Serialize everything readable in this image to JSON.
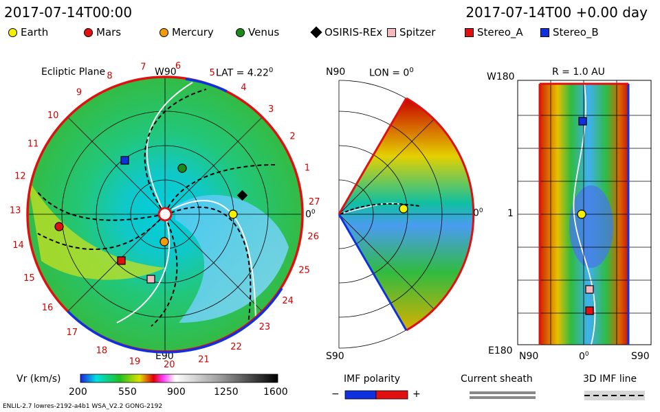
{
  "header": {
    "left_time": "2017-07-14T00:00",
    "right_time": "2017-07-14T00 +0.00 day"
  },
  "legend": [
    {
      "name": "Earth",
      "color": "#f5f000",
      "shape": "circle"
    },
    {
      "name": "Mars",
      "color": "#e01010",
      "shape": "circle"
    },
    {
      "name": "Mercury",
      "color": "#f59a00",
      "shape": "circle"
    },
    {
      "name": "Venus",
      "color": "#1a8a1a",
      "shape": "circle"
    },
    {
      "name": "OSIRIS-REx",
      "color": "#000000",
      "shape": "diamond"
    },
    {
      "name": "Spitzer",
      "color": "#f5b8c0",
      "shape": "square"
    },
    {
      "name": "Stereo_A",
      "color": "#e01010",
      "shape": "square"
    },
    {
      "name": "Stereo_B",
      "color": "#1030e0",
      "shape": "square"
    }
  ],
  "ecliptic": {
    "title": "Ecliptic Plane",
    "lat_label": "LAT = 4.22",
    "deg": "0",
    "top_label": "W90",
    "bottom_label": "E90",
    "right_label": "0",
    "day_marks": [
      "1",
      "2",
      "3",
      "4",
      "5",
      "6",
      "7",
      "8",
      "9",
      "10",
      "11",
      "12",
      "13",
      "14",
      "15",
      "16",
      "17",
      "18",
      "19",
      "20",
      "21",
      "22",
      "23",
      "24",
      "25",
      "26",
      "27"
    ]
  },
  "meridional": {
    "title": "LON = 0",
    "deg": "0",
    "top_label": "N90",
    "bottom_label": "S90",
    "right_label": "0"
  },
  "map": {
    "title": "R = 1.0 AU",
    "top_left": "W180",
    "bottom_left": "E180",
    "mid_left": "1",
    "x_left": "N90",
    "x_mid": "0",
    "x_right": "S90"
  },
  "colorbar": {
    "label": "Vr (km/s)",
    "ticks": [
      "200",
      "550",
      "900",
      "1250",
      "1600"
    ]
  },
  "imf": {
    "title": "IMF polarity",
    "minus": "−",
    "plus": "+"
  },
  "sheath": {
    "title": "Current sheath"
  },
  "imfline": {
    "title": "3D IMF line"
  },
  "footer": {
    "text": "ENLIL-2.7 lowres-2192-a4b1 WSA_V2.2 GONG-2192"
  },
  "chart_data": {
    "type": "heatmap",
    "title": "Vr (km/s)",
    "colorbar_range": [
      200,
      1600
    ],
    "colorbar_ticks": [
      200,
      550,
      900,
      1250,
      1600
    ],
    "time": "2017-07-14T00:00",
    "objects_ecliptic": [
      {
        "name": "Earth",
        "lon_deg": 0,
        "r_au": 1.0
      },
      {
        "name": "Mars",
        "lon_deg": -175,
        "r_au": 1.6
      },
      {
        "name": "Mercury",
        "lon_deg": -88,
        "r_au": 0.45
      },
      {
        "name": "Venus",
        "lon_deg": 80,
        "r_au": 0.7
      },
      {
        "name": "OSIRIS-REx",
        "lon_deg": 20,
        "r_au": 1.18
      },
      {
        "name": "Spitzer",
        "lon_deg": -93,
        "r_au": 1.0
      },
      {
        "name": "Stereo_A",
        "lon_deg": -125,
        "r_au": 0.96
      },
      {
        "name": "Stereo_B",
        "lon_deg": 127,
        "r_au": 1.0
      }
    ]
  }
}
